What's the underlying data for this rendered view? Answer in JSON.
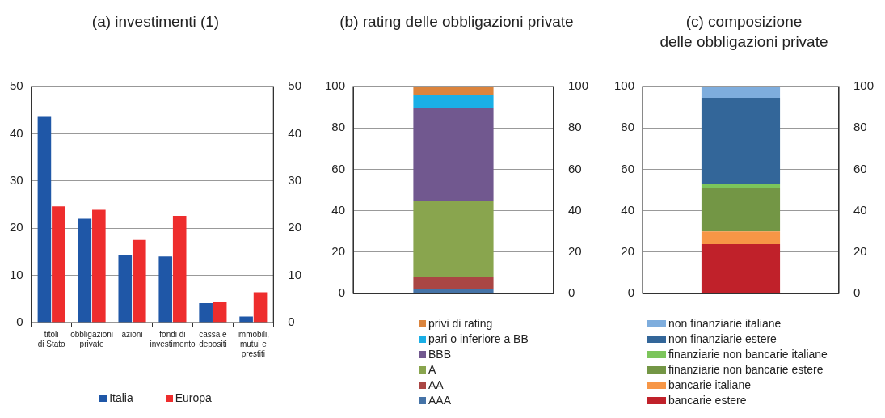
{
  "chart_data": [
    {
      "type": "bar",
      "title": "(a) investimenti (1)",
      "categories": [
        "titoli di Stato",
        "obbligazioni private",
        "azioni",
        "fondi di investimento",
        "cassa e depositi",
        "immobili, mutui e prestiti"
      ],
      "series": [
        {
          "name": "Italia",
          "color": "#1f57a7",
          "values": [
            43.6,
            22,
            14.4,
            14,
            4.1,
            1.3
          ]
        },
        {
          "name": "Europa",
          "color": "#ee2d2d",
          "values": [
            24.6,
            23.9,
            17.5,
            22.6,
            4.4,
            6.4
          ]
        }
      ],
      "ylim": [
        0,
        50
      ],
      "yticks": [
        0,
        10,
        20,
        30,
        40,
        50
      ],
      "y2lim": [
        0,
        50
      ],
      "y2ticks": [
        0,
        10,
        20,
        30,
        40,
        50
      ],
      "grid": "y",
      "legend": "bottom"
    },
    {
      "type": "bar",
      "title": "(b) rating delle obbligazioni private",
      "categories": [
        null
      ],
      "stacked": true,
      "series": [
        {
          "name": "AAA",
          "color": "#4573a7",
          "values": [
            2.3
          ]
        },
        {
          "name": "AA",
          "color": "#aa4644",
          "values": [
            5.5
          ]
        },
        {
          "name": "A",
          "color": "#89a54e",
          "values": [
            36.7
          ]
        },
        {
          "name": "BBB",
          "color": "#71588f",
          "values": [
            45.2
          ]
        },
        {
          "name": "pari o inferiore a BB",
          "color": "#1aafe6",
          "values": [
            6.3
          ]
        },
        {
          "name": "privi di rating",
          "color": "#db843d",
          "values": [
            4
          ]
        }
      ],
      "ylim": [
        0,
        100
      ],
      "yticks": [
        0,
        20,
        40,
        60,
        80,
        100
      ],
      "y2lim": [
        0,
        100
      ],
      "y2ticks": [
        0,
        20,
        40,
        60,
        80,
        100
      ],
      "grid": "y",
      "legend": "bottom"
    },
    {
      "type": "bar",
      "title": "(c) composizione\ndelle obbligazioni private",
      "categories": [
        null
      ],
      "stacked": true,
      "series": [
        {
          "name": "bancarie estere",
          "color": "#c0212a",
          "values": [
            23.8
          ]
        },
        {
          "name": "bancarie italiane",
          "color": "#f79646",
          "values": [
            6.2
          ]
        },
        {
          "name": "finanziarie non bancarie estere",
          "color": "#739645",
          "values": [
            21
          ]
        },
        {
          "name": "finanziarie non bancarie italiane",
          "color": "#7cc55b",
          "values": [
            2
          ]
        },
        {
          "name": "non finanziarie estere",
          "color": "#336699",
          "values": [
            41.5
          ]
        },
        {
          "name": "non finanziarie italiane",
          "color": "#7eaddd",
          "values": [
            5.5
          ]
        }
      ],
      "ylim": [
        0,
        100
      ],
      "yticks": [
        0,
        20,
        40,
        60,
        80,
        100
      ],
      "y2lim": [
        0,
        100
      ],
      "y2ticks": [
        0,
        20,
        40,
        60,
        80,
        100
      ],
      "grid": "y",
      "legend": "bottom"
    }
  ]
}
